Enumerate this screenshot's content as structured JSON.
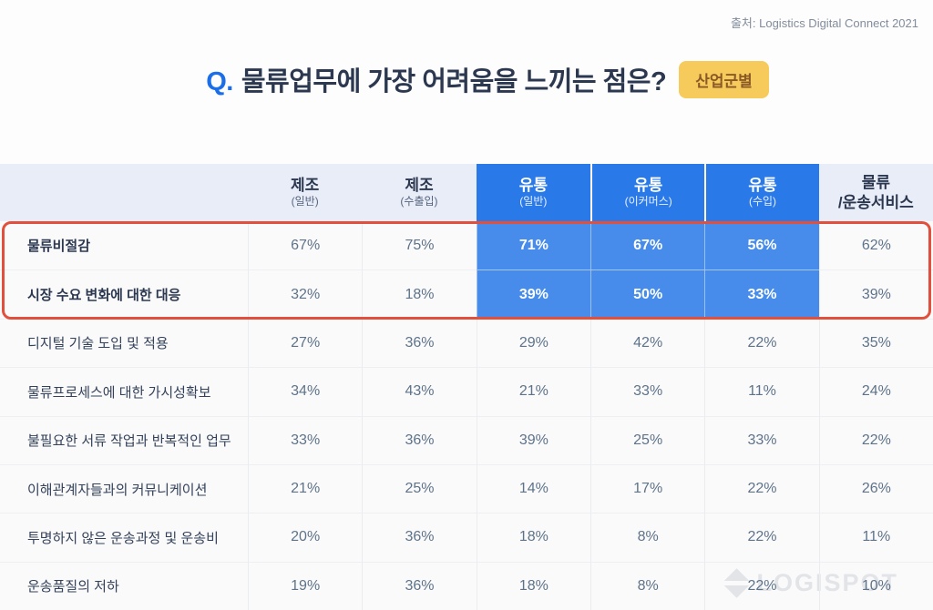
{
  "source": "출처: Logistics Digital Connect 2021",
  "title": {
    "prefix": "Q.",
    "text": "물류업무에 가장 어려움을 느끼는 점은?",
    "badge": "산업군별"
  },
  "watermark": "LOGISPOT",
  "colors": {
    "accent_blue": "#2979E8",
    "cell_blue": "#478CEA",
    "question_blue": "#1C6EE8",
    "header_light": "#E9EDF8",
    "emphasis_red": "#E0503C",
    "badge_bg": "#F7CA5C",
    "badge_text": "#8A5A26",
    "title_navy": "#2B3850",
    "value_gray": "#5E7389"
  },
  "table": {
    "columns": [
      {
        "title": "제조",
        "subtitle": "(일반)",
        "highlight": false,
        "subtitle_small": true
      },
      {
        "title": "제조",
        "subtitle": "(수출입)",
        "highlight": false,
        "subtitle_small": true
      },
      {
        "title": "유통",
        "subtitle": "(일반)",
        "highlight": true,
        "subtitle_small": true
      },
      {
        "title": "유통",
        "subtitle": "(이커머스)",
        "highlight": true,
        "subtitle_small": true
      },
      {
        "title": "유통",
        "subtitle": "(수입)",
        "highlight": true,
        "subtitle_small": true
      },
      {
        "title": "물류",
        "subtitle": "/운송서비스",
        "highlight": false,
        "subtitle_small": false
      }
    ],
    "rows": [
      {
        "label": "물류비절감",
        "values": [
          "67%",
          "75%",
          "71%",
          "67%",
          "56%",
          "62%"
        ],
        "emphasized": true
      },
      {
        "label": "시장 수요 변화에 대한 대응",
        "values": [
          "32%",
          "18%",
          "39%",
          "50%",
          "33%",
          "39%"
        ],
        "emphasized": true
      },
      {
        "label": "디지털 기술 도입 및 적용",
        "values": [
          "27%",
          "36%",
          "29%",
          "42%",
          "22%",
          "35%"
        ],
        "emphasized": false
      },
      {
        "label": "물류프로세스에 대한 가시성확보",
        "values": [
          "34%",
          "43%",
          "21%",
          "33%",
          "11%",
          "24%"
        ],
        "emphasized": false
      },
      {
        "label": "불필요한 서류 작업과 반복적인 업무",
        "values": [
          "33%",
          "36%",
          "39%",
          "25%",
          "33%",
          "22%"
        ],
        "emphasized": false
      },
      {
        "label": "이해관계자들과의 커뮤니케이션",
        "values": [
          "21%",
          "25%",
          "14%",
          "17%",
          "22%",
          "26%"
        ],
        "emphasized": false
      },
      {
        "label": "투명하지 않은 운송과정 및 운송비",
        "values": [
          "20%",
          "36%",
          "18%",
          "8%",
          "22%",
          "11%"
        ],
        "emphasized": false
      },
      {
        "label": "운송품질의 저하",
        "values": [
          "19%",
          "36%",
          "18%",
          "8%",
          "22%",
          "10%"
        ],
        "emphasized": false
      }
    ]
  },
  "chart_data": {
    "type": "table",
    "title": "Q. 물류업무에 가장 어려움을 느끼는 점은? (산업군별)",
    "source": "Logistics Digital Connect 2021",
    "columns": [
      "제조(일반)",
      "제조(수출입)",
      "유통(일반)",
      "유통(이커머스)",
      "유통(수입)",
      "물류/운송서비스"
    ],
    "series": [
      {
        "name": "물류비절감",
        "values": [
          67,
          75,
          71,
          67,
          56,
          62
        ]
      },
      {
        "name": "시장 수요 변화에 대한 대응",
        "values": [
          32,
          18,
          39,
          50,
          33,
          39
        ]
      },
      {
        "name": "디지털 기술 도입 및 적용",
        "values": [
          27,
          36,
          29,
          42,
          22,
          35
        ]
      },
      {
        "name": "물류프로세스에 대한 가시성확보",
        "values": [
          34,
          43,
          21,
          33,
          11,
          24
        ]
      },
      {
        "name": "불필요한 서류 작업과 반복적인 업무",
        "values": [
          33,
          36,
          39,
          25,
          33,
          22
        ]
      },
      {
        "name": "이해관계자들과의 커뮤니케이션",
        "values": [
          21,
          25,
          14,
          17,
          22,
          26
        ]
      },
      {
        "name": "투명하지 않은 운송과정 및 운송비",
        "values": [
          20,
          36,
          18,
          8,
          22,
          11
        ]
      },
      {
        "name": "운송품질의 저하",
        "values": [
          19,
          36,
          18,
          8,
          22,
          10
        ]
      }
    ],
    "unit": "%",
    "highlighted_columns": [
      "유통(일반)",
      "유통(이커머스)",
      "유통(수입)"
    ],
    "highlighted_rows": [
      "물류비절감",
      "시장 수요 변화에 대한 대응"
    ]
  }
}
